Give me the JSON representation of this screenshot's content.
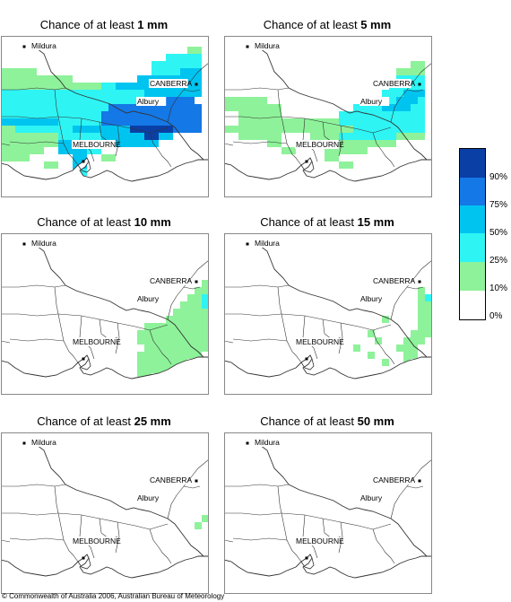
{
  "panels": [
    {
      "prefix": "Chance of at least",
      "amount": "1 mm"
    },
    {
      "prefix": "Chance of at least",
      "amount": "5 mm"
    },
    {
      "prefix": "Chance of at least",
      "amount": "10 mm"
    },
    {
      "prefix": "Chance of at least",
      "amount": "15 mm"
    },
    {
      "prefix": "Chance of at least",
      "amount": "25 mm"
    },
    {
      "prefix": "Chance of at least",
      "amount": "50 mm"
    }
  ],
  "places": {
    "mildura": "Mildura",
    "canberra": "CANBERRA",
    "albury": "Albury",
    "melbourne": "MELBOURNE"
  },
  "legend": {
    "labels": [
      "90%",
      "75%",
      "50%",
      "25%",
      "10%",
      "0%"
    ],
    "colors": [
      "#0a3fa6",
      "#1478e6",
      "#00c4f0",
      "#2ef4f4",
      "#8ef29a",
      "#ffffff"
    ]
  },
  "copyright": "© Commonwealth of Australia 2006, Australian Bureau of Meteorology"
}
